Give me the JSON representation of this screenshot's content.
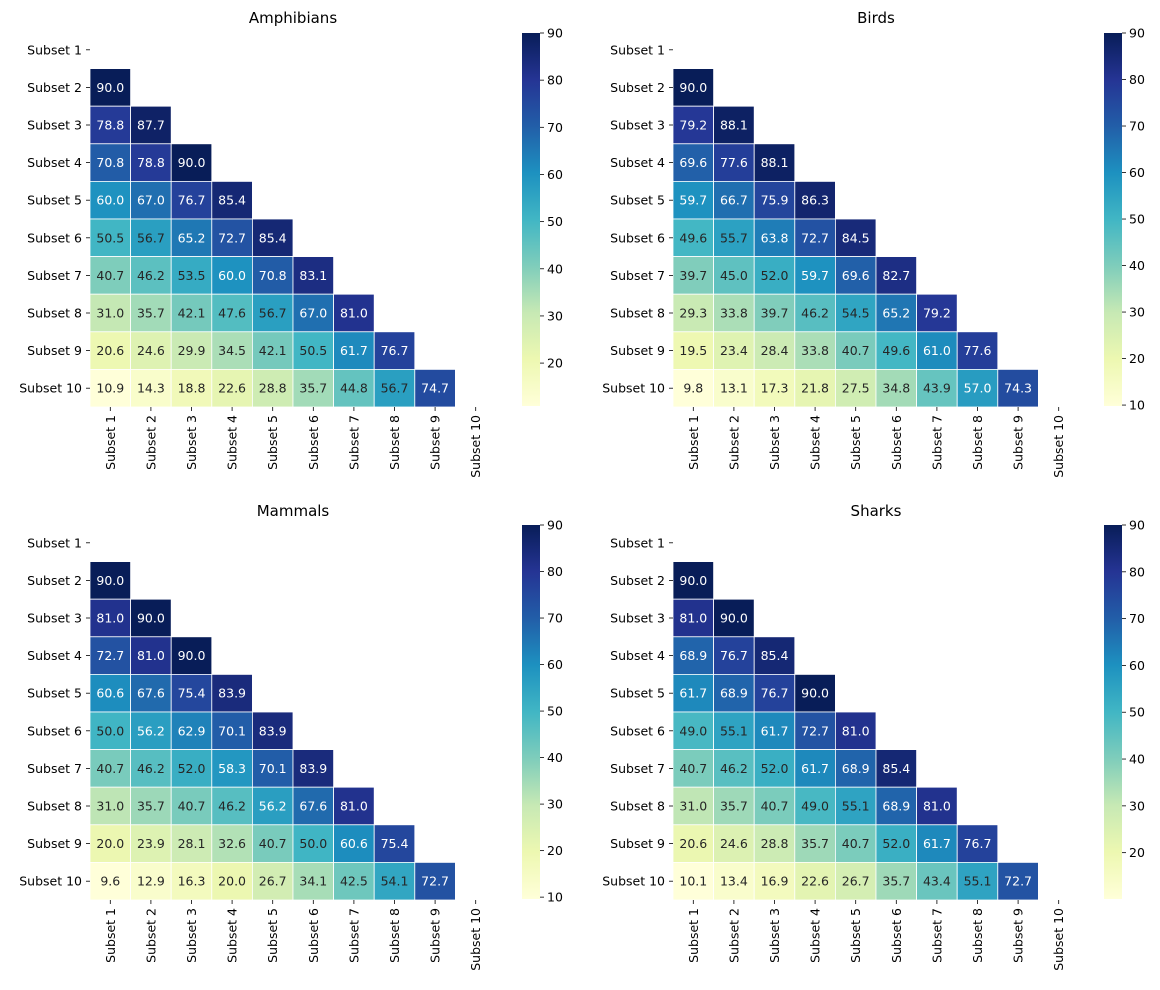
{
  "chart_data": [
    {
      "type": "heatmap",
      "title": "Amphibians",
      "rows": [
        "Subset 1",
        "Subset 2",
        "Subset 3",
        "Subset 4",
        "Subset 5",
        "Subset 6",
        "Subset 7",
        "Subset 8",
        "Subset 9",
        "Subset 10"
      ],
      "columns": [
        "Subset 1",
        "Subset 2",
        "Subset 3",
        "Subset 4",
        "Subset 5",
        "Subset 6",
        "Subset 7",
        "Subset 8",
        "Subset 9",
        "Subset 10"
      ],
      "values": [
        [],
        [
          90.0
        ],
        [
          78.8,
          87.7
        ],
        [
          70.8,
          78.8,
          90.0
        ],
        [
          60.0,
          67.0,
          76.7,
          85.4
        ],
        [
          50.5,
          56.7,
          65.2,
          72.7,
          85.4
        ],
        [
          40.7,
          46.2,
          53.5,
          60.0,
          70.8,
          83.1
        ],
        [
          31.0,
          35.7,
          42.1,
          47.6,
          56.7,
          67.0,
          81.0
        ],
        [
          20.6,
          24.6,
          29.9,
          34.5,
          42.1,
          50.5,
          61.7,
          76.7
        ],
        [
          10.9,
          14.3,
          18.8,
          22.6,
          28.8,
          35.7,
          44.8,
          56.7,
          74.7
        ]
      ],
      "colorbar": {
        "range": [
          10.9,
          90
        ],
        "ticks": [
          "20",
          "30",
          "40",
          "50",
          "60",
          "70",
          "80",
          "90"
        ]
      }
    },
    {
      "type": "heatmap",
      "title": "Birds",
      "rows": [
        "Subset 1",
        "Subset 2",
        "Subset 3",
        "Subset 4",
        "Subset 5",
        "Subset 6",
        "Subset 7",
        "Subset 8",
        "Subset 9",
        "Subset 10"
      ],
      "columns": [
        "Subset 1",
        "Subset 2",
        "Subset 3",
        "Subset 4",
        "Subset 5",
        "Subset 6",
        "Subset 7",
        "Subset 8",
        "Subset 9",
        "Subset 10"
      ],
      "values": [
        [],
        [
          90.0
        ],
        [
          79.2,
          88.1
        ],
        [
          69.6,
          77.6,
          88.1
        ],
        [
          59.7,
          66.7,
          75.9,
          86.3
        ],
        [
          49.6,
          55.7,
          63.8,
          72.7,
          84.5
        ],
        [
          39.7,
          45.0,
          52.0,
          59.7,
          69.6,
          82.7
        ],
        [
          29.3,
          33.8,
          39.7,
          46.2,
          54.5,
          65.2,
          79.2
        ],
        [
          19.5,
          23.4,
          28.4,
          33.8,
          40.7,
          49.6,
          61.0,
          77.6
        ],
        [
          9.8,
          13.1,
          17.3,
          21.8,
          27.5,
          34.8,
          43.9,
          57.0,
          74.3
        ]
      ],
      "colorbar": {
        "range": [
          9.8,
          90
        ],
        "ticks": [
          "10",
          "20",
          "30",
          "40",
          "50",
          "60",
          "70",
          "80",
          "90"
        ]
      }
    },
    {
      "type": "heatmap",
      "title": "Mammals",
      "rows": [
        "Subset 1",
        "Subset 2",
        "Subset 3",
        "Subset 4",
        "Subset 5",
        "Subset 6",
        "Subset 7",
        "Subset 8",
        "Subset 9",
        "Subset 10"
      ],
      "columns": [
        "Subset 1",
        "Subset 2",
        "Subset 3",
        "Subset 4",
        "Subset 5",
        "Subset 6",
        "Subset 7",
        "Subset 8",
        "Subset 9",
        "Subset 10"
      ],
      "values": [
        [],
        [
          90.0
        ],
        [
          81.0,
          90.0
        ],
        [
          72.7,
          81.0,
          90.0
        ],
        [
          60.6,
          67.6,
          75.4,
          83.9
        ],
        [
          50.0,
          56.2,
          62.9,
          70.1,
          83.9
        ],
        [
          40.7,
          46.2,
          52.0,
          58.3,
          70.1,
          83.9
        ],
        [
          31.0,
          35.7,
          40.7,
          46.2,
          56.2,
          67.6,
          81.0
        ],
        [
          20.0,
          23.9,
          28.1,
          32.6,
          40.7,
          50.0,
          60.6,
          75.4
        ],
        [
          9.6,
          12.9,
          16.3,
          20.0,
          26.7,
          34.1,
          42.5,
          54.1,
          72.7
        ]
      ],
      "colorbar": {
        "range": [
          9.6,
          90
        ],
        "ticks": [
          "10",
          "20",
          "30",
          "40",
          "50",
          "60",
          "70",
          "80",
          "90"
        ]
      }
    },
    {
      "type": "heatmap",
      "title": "Sharks",
      "rows": [
        "Subset 1",
        "Subset 2",
        "Subset 3",
        "Subset 4",
        "Subset 5",
        "Subset 6",
        "Subset 7",
        "Subset 8",
        "Subset 9",
        "Subset 10"
      ],
      "columns": [
        "Subset 1",
        "Subset 2",
        "Subset 3",
        "Subset 4",
        "Subset 5",
        "Subset 6",
        "Subset 7",
        "Subset 8",
        "Subset 9",
        "Subset 10"
      ],
      "values": [
        [],
        [
          90.0
        ],
        [
          81.0,
          90.0
        ],
        [
          68.9,
          76.7,
          85.4
        ],
        [
          61.7,
          68.9,
          76.7,
          90.0
        ],
        [
          49.0,
          55.1,
          61.7,
          72.7,
          81.0
        ],
        [
          40.7,
          46.2,
          52.0,
          61.7,
          68.9,
          85.4
        ],
        [
          31.0,
          35.7,
          40.7,
          49.0,
          55.1,
          68.9,
          81.0
        ],
        [
          20.6,
          24.6,
          28.8,
          35.7,
          40.7,
          52.0,
          61.7,
          76.7
        ],
        [
          10.1,
          13.4,
          16.9,
          22.6,
          26.7,
          35.7,
          43.4,
          55.1,
          72.7
        ]
      ],
      "colorbar": {
        "range": [
          10.1,
          90
        ],
        "ticks": [
          "20",
          "30",
          "40",
          "50",
          "60",
          "70",
          "80",
          "90"
        ]
      }
    }
  ],
  "colors": {
    "colormap_stops": [
      "#ffffd9",
      "#edf8b1",
      "#c7e9b4",
      "#7fcdbb",
      "#41b6c4",
      "#1d91c0",
      "#225ea8",
      "#253494",
      "#081d58"
    ],
    "cell_border": "#ffffff"
  },
  "colormap": "YlGnBu"
}
